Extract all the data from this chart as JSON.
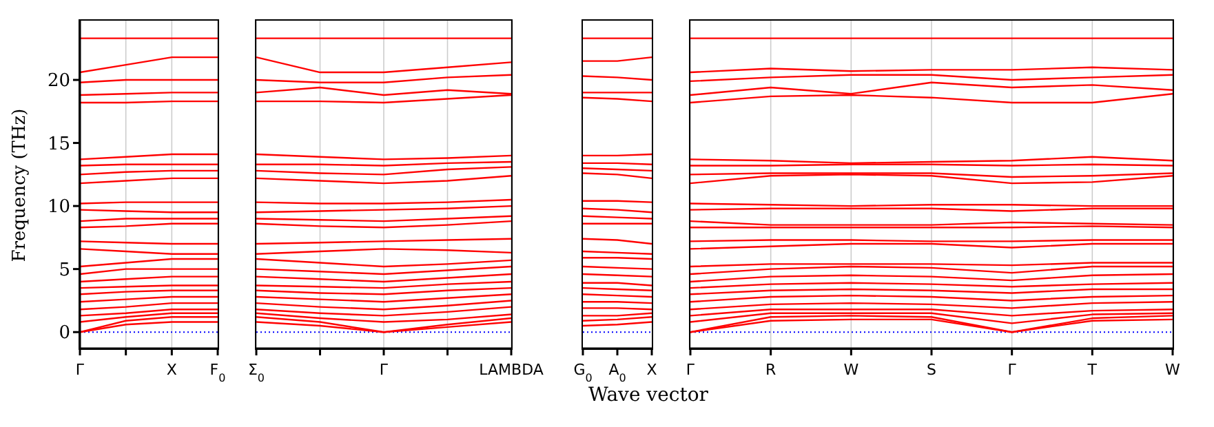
{
  "chart_data": [
    {
      "type": "line",
      "ylabel": "Frequency (THz)",
      "categories": [
        "Γ",
        null,
        "X",
        "F$_{0}$"
      ],
      "ylim": [
        -1.3,
        24.7
      ],
      "yticks": [
        0,
        5,
        10,
        15,
        20
      ],
      "grid": "x",
      "ref_lines": [
        {
          "axis": "y",
          "value": 0,
          "color": "#0000ff",
          "line_style": "dotted"
        }
      ],
      "series": [
        {
          "color": "#ff0000",
          "values": [
            0,
            0.6,
            0.8,
            0.8
          ]
        },
        {
          "color": "#ff0000",
          "values": [
            0,
            0.9,
            1.2,
            1.2
          ]
        },
        {
          "color": "#ff0000",
          "values": [
            0.8,
            1.2,
            1.5,
            1.5
          ]
        },
        {
          "color": "#ff0000",
          "values": [
            1.3,
            1.5,
            1.8,
            1.8
          ]
        },
        {
          "color": "#ff0000",
          "values": [
            1.8,
            2.0,
            2.3,
            2.3
          ]
        },
        {
          "color": "#ff0000",
          "values": [
            2.4,
            2.6,
            2.8,
            2.8
          ]
        },
        {
          "color": "#ff0000",
          "values": [
            3.0,
            3.2,
            3.3,
            3.3
          ]
        },
        {
          "color": "#ff0000",
          "values": [
            3.5,
            3.6,
            3.7,
            3.7
          ]
        },
        {
          "color": "#ff0000",
          "values": [
            4.0,
            4.2,
            4.4,
            4.4
          ]
        },
        {
          "color": "#ff0000",
          "values": [
            4.6,
            5.0,
            5.0,
            5.0
          ]
        },
        {
          "color": "#ff0000",
          "values": [
            5.2,
            5.5,
            5.8,
            5.8
          ]
        },
        {
          "color": "#ff0000",
          "values": [
            6.6,
            6.4,
            6.2,
            6.2
          ]
        },
        {
          "color": "#ff0000",
          "values": [
            7.2,
            7.1,
            7.0,
            7.0
          ]
        },
        {
          "color": "#ff0000",
          "values": [
            8.3,
            8.4,
            8.6,
            8.6
          ]
        },
        {
          "color": "#ff0000",
          "values": [
            8.8,
            9.0,
            9.0,
            9.0
          ]
        },
        {
          "color": "#ff0000",
          "values": [
            9.7,
            9.6,
            9.5,
            9.5
          ]
        },
        {
          "color": "#ff0000",
          "values": [
            10.2,
            10.3,
            10.3,
            10.3
          ]
        },
        {
          "color": "#ff0000",
          "values": [
            11.8,
            12.0,
            12.2,
            12.2
          ]
        },
        {
          "color": "#ff0000",
          "values": [
            12.5,
            12.7,
            12.8,
            12.8
          ]
        },
        {
          "color": "#ff0000",
          "values": [
            13.2,
            13.3,
            13.3,
            13.3
          ]
        },
        {
          "color": "#ff0000",
          "values": [
            13.7,
            13.9,
            14.1,
            14.1
          ]
        },
        {
          "color": "#ff0000",
          "values": [
            18.2,
            18.2,
            18.3,
            18.3
          ]
        },
        {
          "color": "#ff0000",
          "values": [
            18.8,
            18.9,
            19.0,
            19.0
          ]
        },
        {
          "color": "#ff0000",
          "values": [
            19.8,
            20.0,
            20.0,
            20.0
          ]
        },
        {
          "color": "#ff0000",
          "values": [
            20.6,
            21.2,
            21.8,
            21.8
          ]
        },
        {
          "color": "#ff0000",
          "values": [
            23.3,
            23.3,
            23.3,
            23.3
          ]
        }
      ]
    },
    {
      "type": "line",
      "categories": [
        "Σ$_{0}$",
        null,
        "Γ",
        null,
        "LAMBDA"
      ],
      "ylim": [
        -1.3,
        24.7
      ],
      "yticks": [
        0,
        5,
        10,
        15,
        20
      ],
      "tick_labels": "x",
      "grid": "x",
      "ref_lines": [
        {
          "axis": "y",
          "value": 0,
          "color": "#0000ff",
          "line_style": "dotted"
        }
      ],
      "series": [
        {
          "color": "#ff0000",
          "values": [
            0.8,
            0.5,
            0,
            0.4,
            0.8
          ]
        },
        {
          "color": "#ff0000",
          "values": [
            1.2,
            0.8,
            0,
            0.6,
            1.1
          ]
        },
        {
          "color": "#ff0000",
          "values": [
            1.5,
            1.1,
            0.8,
            1.0,
            1.4
          ]
        },
        {
          "color": "#ff0000",
          "values": [
            1.8,
            1.5,
            1.3,
            1.6,
            2.0
          ]
        },
        {
          "color": "#ff0000",
          "values": [
            2.3,
            2.0,
            1.8,
            2.1,
            2.5
          ]
        },
        {
          "color": "#ff0000",
          "values": [
            2.8,
            2.6,
            2.4,
            2.7,
            3.0
          ]
        },
        {
          "color": "#ff0000",
          "values": [
            3.3,
            3.1,
            3.0,
            3.3,
            3.5
          ]
        },
        {
          "color": "#ff0000",
          "values": [
            3.7,
            3.6,
            3.5,
            3.8,
            4.0
          ]
        },
        {
          "color": "#ff0000",
          "values": [
            4.4,
            4.2,
            4.0,
            4.3,
            4.6
          ]
        },
        {
          "color": "#ff0000",
          "values": [
            5.0,
            4.8,
            4.6,
            4.9,
            5.2
          ]
        },
        {
          "color": "#ff0000",
          "values": [
            5.8,
            5.5,
            5.2,
            5.4,
            5.7
          ]
        },
        {
          "color": "#ff0000",
          "values": [
            6.2,
            6.4,
            6.6,
            6.5,
            6.3
          ]
        },
        {
          "color": "#ff0000",
          "values": [
            7.0,
            7.1,
            7.2,
            7.3,
            7.4
          ]
        },
        {
          "color": "#ff0000",
          "values": [
            8.6,
            8.4,
            8.3,
            8.5,
            8.8
          ]
        },
        {
          "color": "#ff0000",
          "values": [
            9.0,
            8.9,
            8.8,
            9.0,
            9.2
          ]
        },
        {
          "color": "#ff0000",
          "values": [
            9.5,
            9.6,
            9.7,
            9.8,
            10.0
          ]
        },
        {
          "color": "#ff0000",
          "values": [
            10.3,
            10.2,
            10.2,
            10.3,
            10.5
          ]
        },
        {
          "color": "#ff0000",
          "values": [
            12.2,
            12.0,
            11.8,
            12.0,
            12.4
          ]
        },
        {
          "color": "#ff0000",
          "values": [
            12.8,
            12.6,
            12.5,
            12.9,
            13.1
          ]
        },
        {
          "color": "#ff0000",
          "values": [
            13.3,
            13.3,
            13.2,
            13.4,
            13.5
          ]
        },
        {
          "color": "#ff0000",
          "values": [
            14.1,
            13.9,
            13.7,
            13.8,
            14.0
          ]
        },
        {
          "color": "#ff0000",
          "values": [
            18.3,
            18.3,
            18.2,
            18.5,
            18.8
          ]
        },
        {
          "color": "#ff0000",
          "values": [
            19.0,
            19.4,
            18.8,
            19.2,
            18.9
          ]
        },
        {
          "color": "#ff0000",
          "values": [
            20.0,
            19.8,
            19.8,
            20.2,
            20.4
          ]
        },
        {
          "color": "#ff0000",
          "values": [
            21.8,
            20.6,
            20.6,
            21.0,
            21.4
          ]
        },
        {
          "color": "#ff0000",
          "values": [
            23.3,
            23.3,
            23.3,
            23.3,
            23.3
          ]
        }
      ]
    },
    {
      "type": "line",
      "categories": [
        "G$_{0}$",
        "A$_{0}$",
        "X"
      ],
      "ylim": [
        -1.3,
        24.7
      ],
      "yticks": [
        0,
        5,
        10,
        15,
        20
      ],
      "tick_labels": "x",
      "ref_lines": [
        {
          "axis": "y",
          "value": 0,
          "color": "#0000ff",
          "line_style": "dotted"
        }
      ],
      "series": [
        {
          "color": "#ff0000",
          "values": [
            0.5,
            0.6,
            0.8
          ]
        },
        {
          "color": "#ff0000",
          "values": [
            0.9,
            1.0,
            1.2
          ]
        },
        {
          "color": "#ff0000",
          "values": [
            1.3,
            1.3,
            1.5
          ]
        },
        {
          "color": "#ff0000",
          "values": [
            1.9,
            1.9,
            1.8
          ]
        },
        {
          "color": "#ff0000",
          "values": [
            2.4,
            2.4,
            2.3
          ]
        },
        {
          "color": "#ff0000",
          "values": [
            3.0,
            2.9,
            2.8
          ]
        },
        {
          "color": "#ff0000",
          "values": [
            3.5,
            3.4,
            3.3
          ]
        },
        {
          "color": "#ff0000",
          "values": [
            3.9,
            3.9,
            3.7
          ]
        },
        {
          "color": "#ff0000",
          "values": [
            4.6,
            4.5,
            4.4
          ]
        },
        {
          "color": "#ff0000",
          "values": [
            5.2,
            5.1,
            5.0
          ]
        },
        {
          "color": "#ff0000",
          "values": [
            5.9,
            5.9,
            5.8
          ]
        },
        {
          "color": "#ff0000",
          "values": [
            6.4,
            6.3,
            6.2
          ]
        },
        {
          "color": "#ff0000",
          "values": [
            7.4,
            7.3,
            7.0
          ]
        },
        {
          "color": "#ff0000",
          "values": [
            8.6,
            8.6,
            8.6
          ]
        },
        {
          "color": "#ff0000",
          "values": [
            9.2,
            9.1,
            9.0
          ]
        },
        {
          "color": "#ff0000",
          "values": [
            9.8,
            9.7,
            9.5
          ]
        },
        {
          "color": "#ff0000",
          "values": [
            10.4,
            10.4,
            10.3
          ]
        },
        {
          "color": "#ff0000",
          "values": [
            12.6,
            12.5,
            12.2
          ]
        },
        {
          "color": "#ff0000",
          "values": [
            13.0,
            12.9,
            12.8
          ]
        },
        {
          "color": "#ff0000",
          "values": [
            13.4,
            13.4,
            13.3
          ]
        },
        {
          "color": "#ff0000",
          "values": [
            14.0,
            14.0,
            14.1
          ]
        },
        {
          "color": "#ff0000",
          "values": [
            18.6,
            18.5,
            18.3
          ]
        },
        {
          "color": "#ff0000",
          "values": [
            19.0,
            19.0,
            19.0
          ]
        },
        {
          "color": "#ff0000",
          "values": [
            20.3,
            20.2,
            20.0
          ]
        },
        {
          "color": "#ff0000",
          "values": [
            21.5,
            21.5,
            21.8
          ]
        },
        {
          "color": "#ff0000",
          "values": [
            23.3,
            23.3,
            23.3
          ]
        }
      ]
    },
    {
      "type": "line",
      "xlabel": "Wave vector",
      "categories": [
        "Γ",
        "R",
        "W",
        "S",
        "Γ",
        "T",
        "W"
      ],
      "ylim": [
        -1.3,
        24.7
      ],
      "yticks": [
        0,
        5,
        10,
        15,
        20
      ],
      "tick_labels": "x",
      "grid": "x",
      "ref_lines": [
        {
          "axis": "y",
          "value": 0,
          "color": "#0000ff",
          "line_style": "dotted"
        }
      ],
      "series": [
        {
          "color": "#ff0000",
          "values": [
            0,
            0.9,
            1.0,
            1.0,
            0,
            0.9,
            1.0
          ]
        },
        {
          "color": "#ff0000",
          "values": [
            0,
            1.2,
            1.3,
            1.2,
            0,
            1.1,
            1.3
          ]
        },
        {
          "color": "#ff0000",
          "values": [
            0.8,
            1.5,
            1.5,
            1.5,
            0.7,
            1.4,
            1.5
          ]
        },
        {
          "color": "#ff0000",
          "values": [
            1.3,
            1.8,
            1.8,
            1.8,
            1.3,
            1.7,
            1.8
          ]
        },
        {
          "color": "#ff0000",
          "values": [
            1.8,
            2.2,
            2.3,
            2.2,
            1.9,
            2.3,
            2.4
          ]
        },
        {
          "color": "#ff0000",
          "values": [
            2.4,
            2.8,
            2.9,
            2.8,
            2.5,
            2.8,
            2.9
          ]
        },
        {
          "color": "#ff0000",
          "values": [
            3.0,
            3.3,
            3.4,
            3.3,
            3.1,
            3.4,
            3.4
          ]
        },
        {
          "color": "#ff0000",
          "values": [
            3.5,
            3.8,
            3.9,
            3.8,
            3.6,
            3.8,
            3.9
          ]
        },
        {
          "color": "#ff0000",
          "values": [
            4.0,
            4.4,
            4.5,
            4.4,
            4.1,
            4.5,
            4.6
          ]
        },
        {
          "color": "#ff0000",
          "values": [
            4.6,
            5.0,
            5.2,
            5.1,
            4.7,
            5.2,
            5.2
          ]
        },
        {
          "color": "#ff0000",
          "values": [
            5.2,
            5.4,
            5.4,
            5.4,
            5.3,
            5.5,
            5.5
          ]
        },
        {
          "color": "#ff0000",
          "values": [
            6.6,
            6.8,
            7.0,
            7.0,
            6.7,
            7.0,
            7.0
          ]
        },
        {
          "color": "#ff0000",
          "values": [
            7.2,
            7.3,
            7.3,
            7.2,
            7.2,
            7.3,
            7.3
          ]
        },
        {
          "color": "#ff0000",
          "values": [
            8.3,
            8.3,
            8.3,
            8.3,
            8.3,
            8.4,
            8.3
          ]
        },
        {
          "color": "#ff0000",
          "values": [
            8.8,
            8.5,
            8.5,
            8.5,
            8.7,
            8.6,
            8.5
          ]
        },
        {
          "color": "#ff0000",
          "values": [
            9.7,
            9.8,
            9.8,
            9.8,
            9.6,
            9.8,
            9.8
          ]
        },
        {
          "color": "#ff0000",
          "values": [
            10.2,
            10.1,
            10.0,
            10.1,
            10.1,
            10.0,
            10.0
          ]
        },
        {
          "color": "#ff0000",
          "values": [
            11.8,
            12.4,
            12.5,
            12.4,
            11.8,
            11.9,
            12.4
          ]
        },
        {
          "color": "#ff0000",
          "values": [
            12.5,
            12.6,
            12.6,
            12.6,
            12.3,
            12.4,
            12.6
          ]
        },
        {
          "color": "#ff0000",
          "values": [
            13.2,
            13.2,
            13.3,
            13.3,
            13.2,
            13.3,
            13.2
          ]
        },
        {
          "color": "#ff0000",
          "values": [
            13.7,
            13.6,
            13.4,
            13.5,
            13.6,
            13.9,
            13.6
          ]
        },
        {
          "color": "#ff0000",
          "values": [
            18.2,
            18.7,
            18.8,
            18.6,
            18.2,
            18.2,
            18.9
          ]
        },
        {
          "color": "#ff0000",
          "values": [
            18.8,
            19.4,
            18.9,
            19.8,
            19.4,
            19.6,
            19.2
          ]
        },
        {
          "color": "#ff0000",
          "values": [
            19.9,
            20.2,
            20.4,
            20.4,
            20.0,
            20.2,
            20.4
          ]
        },
        {
          "color": "#ff0000",
          "values": [
            20.6,
            20.9,
            20.7,
            20.8,
            20.8,
            21.0,
            20.8
          ]
        },
        {
          "color": "#ff0000",
          "values": [
            23.3,
            23.3,
            23.3,
            23.3,
            23.3,
            23.3,
            23.3
          ]
        }
      ]
    }
  ]
}
